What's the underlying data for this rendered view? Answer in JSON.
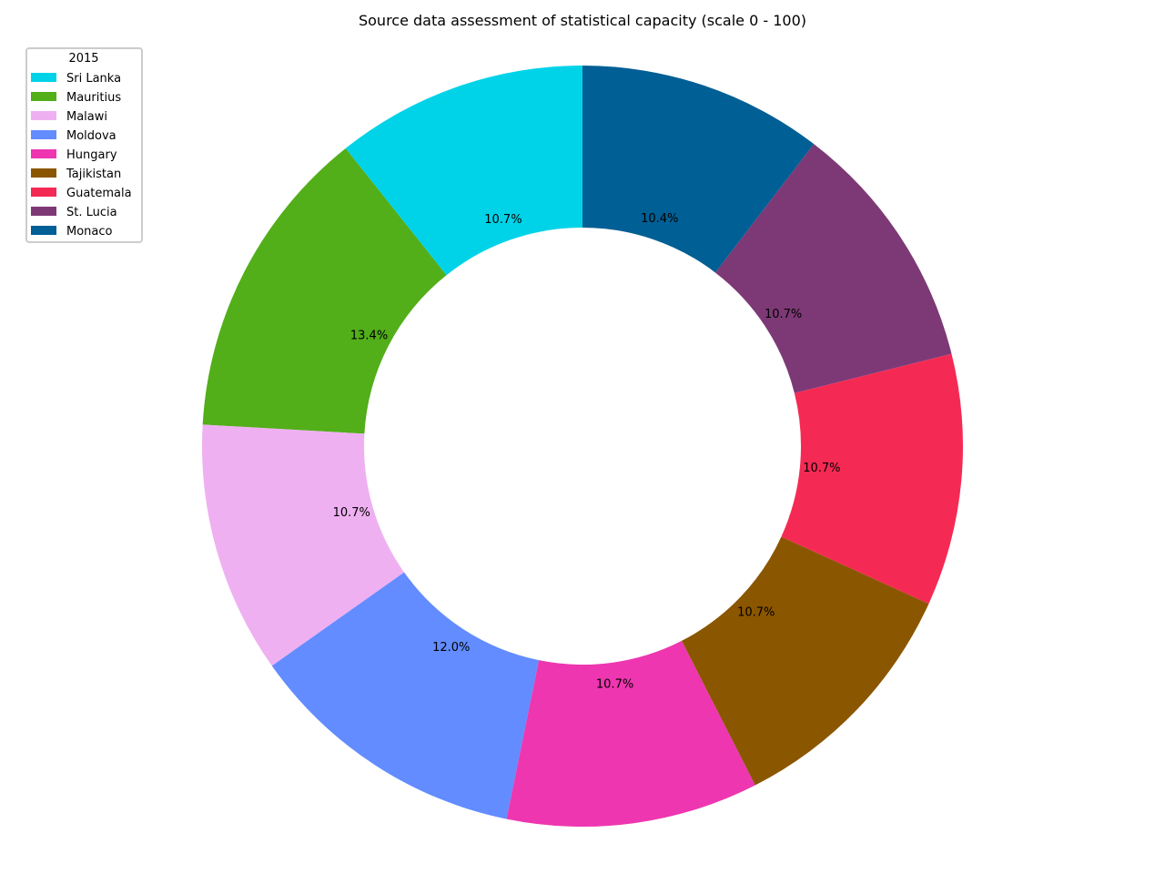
{
  "chart_data": {
    "type": "pie",
    "donut": true,
    "title": "Source data assessment of statistical capacity (scale 0 - 100)",
    "legend_title": "2015",
    "legend_placement": "top-left",
    "start": "top",
    "direction": "counterclockwise",
    "slices": [
      {
        "label": "Sri Lanka",
        "percent": 10.7,
        "pct_label": "10.7%",
        "color": "#00d3e8"
      },
      {
        "label": "Mauritius",
        "percent": 13.4,
        "pct_label": "13.4%",
        "color": "#52ae19"
      },
      {
        "label": "Malawi",
        "percent": 10.7,
        "pct_label": "10.7%",
        "color": "#efb0f2"
      },
      {
        "label": "Moldova",
        "percent": 12.0,
        "pct_label": "12.0%",
        "color": "#628cff"
      },
      {
        "label": "Hungary",
        "percent": 10.7,
        "pct_label": "10.7%",
        "color": "#ee36b0"
      },
      {
        "label": "Tajikistan",
        "percent": 10.7,
        "pct_label": "10.7%",
        "color": "#8b5600"
      },
      {
        "label": "Guatemala",
        "percent": 10.7,
        "pct_label": "10.7%",
        "color": "#f52a54"
      },
      {
        "label": "St. Lucia",
        "percent": 10.7,
        "pct_label": "10.7%",
        "color": "#7d3976"
      },
      {
        "label": "Monaco",
        "percent": 10.4,
        "pct_label": "10.4%",
        "color": "#005f94"
      }
    ]
  }
}
